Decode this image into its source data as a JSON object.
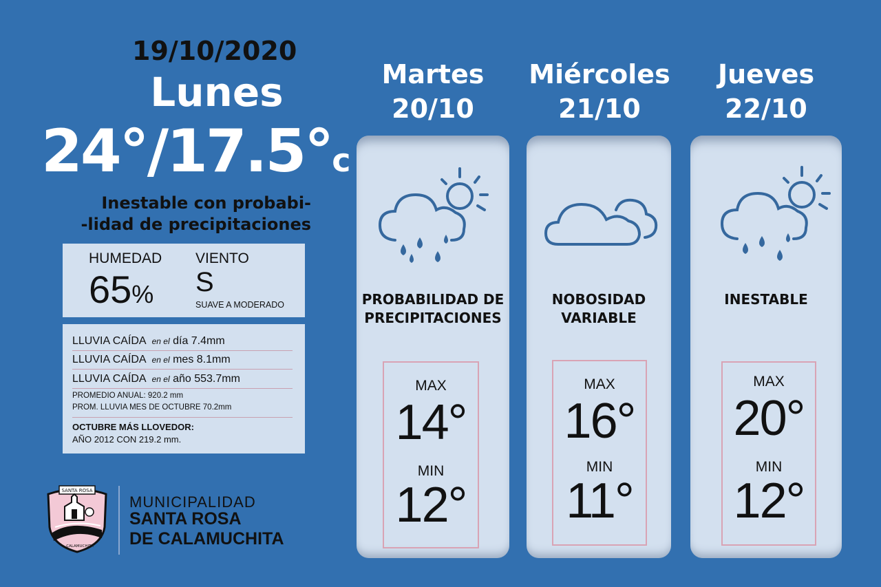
{
  "today": {
    "date": "19/10/2020",
    "day": "Lunes",
    "temp_high": "24°",
    "temp_low": "/17.5°",
    "unit": "c",
    "description_1": "Inestable con probabi-",
    "description_2": "-lidad de precipitaciones"
  },
  "conditions": {
    "humidity_label": "HUMEDAD",
    "humidity_value": "65",
    "humidity_unit": "%",
    "wind_label": "VIENTO",
    "wind_value": "S",
    "wind_desc": "SUAVE A MODERADO"
  },
  "rain": {
    "day": {
      "label": "LLUVIA CAÍDA",
      "qualifier": "en el",
      "text": "día 7.4mm"
    },
    "month": {
      "label": "LLUVIA CAÍDA",
      "qualifier": "en el",
      "text": "mes 8.1mm"
    },
    "year": {
      "label": "LLUVIA CAÍDA",
      "qualifier": "en el",
      "text": "año 553.7mm"
    },
    "annual_avg": "PROMEDIO ANUAL: 920.2 mm",
    "october_avg": "PROM. LLUVIA MES DE OCTUBRE 70.2mm",
    "rainiest_title": "OCTUBRE MÁS LLOVEDOR:",
    "rainiest_value": "AÑO 2012 CON 219.2 mm."
  },
  "brand": {
    "line1": "MUNICIPALIDAD",
    "line2": "SANTA ROSA",
    "line3": "DE CALAMUCHITA",
    "seal_top": "SANTA ROSA",
    "seal_bottom": "CALAMUCHITA"
  },
  "forecast": [
    {
      "day": "Martes",
      "date": "20/10",
      "icon": "cloud-rain-sun-icon",
      "cond1": "PROBABILIDAD DE",
      "cond2": "PRECIPITACIONES",
      "max_label": "MAX",
      "max": "14°",
      "min_label": "MIN",
      "min": "12°"
    },
    {
      "day": "Miércoles",
      "date": "21/10",
      "icon": "cloud-icon",
      "cond1": "NOBOSIDAD",
      "cond2": "VARIABLE",
      "max_label": "MAX",
      "max": "16°",
      "min_label": "MIN",
      "min": "11°"
    },
    {
      "day": "Jueves",
      "date": "22/10",
      "icon": "cloud-rain-sun-icon",
      "cond1": "INESTABLE",
      "cond2": "",
      "max_label": "MAX",
      "max": "20°",
      "min_label": "MIN",
      "min": "12°"
    }
  ],
  "colors": {
    "background": "#3270b0",
    "panel": "#d3e0ef",
    "icon": "#35689e",
    "box_border": "#d9a3b4"
  }
}
